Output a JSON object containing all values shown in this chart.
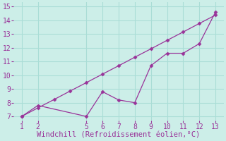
{
  "xlabel": "Windchill (Refroidissement éolien,°C)",
  "line1_x": [
    1,
    2,
    3,
    4,
    5,
    6,
    7,
    8,
    9,
    10,
    11,
    12,
    13
  ],
  "line1_y": [
    7.0,
    7.62,
    8.23,
    8.85,
    9.46,
    10.08,
    10.69,
    11.31,
    11.92,
    12.54,
    13.15,
    13.77,
    14.38
  ],
  "line2_x": [
    1,
    2,
    5,
    6,
    7,
    8,
    9,
    10,
    11,
    12,
    13
  ],
  "line2_y": [
    7.0,
    7.8,
    7.0,
    8.8,
    8.2,
    8.0,
    10.7,
    11.6,
    11.6,
    12.3,
    14.6
  ],
  "line_color": "#993399",
  "bg_color": "#cceee8",
  "grid_color": "#aaddd6",
  "xlim_min": 0.5,
  "xlim_max": 13.5,
  "ylim_min": 6.7,
  "ylim_max": 15.3,
  "xticks": [
    1,
    2,
    5,
    6,
    7,
    8,
    9,
    10,
    11,
    12,
    13
  ],
  "yticks": [
    7,
    8,
    9,
    10,
    11,
    12,
    13,
    14,
    15
  ],
  "xlabel_color": "#993399",
  "tick_color": "#993399",
  "tick_fontsize": 7,
  "xlabel_fontsize": 7.5
}
